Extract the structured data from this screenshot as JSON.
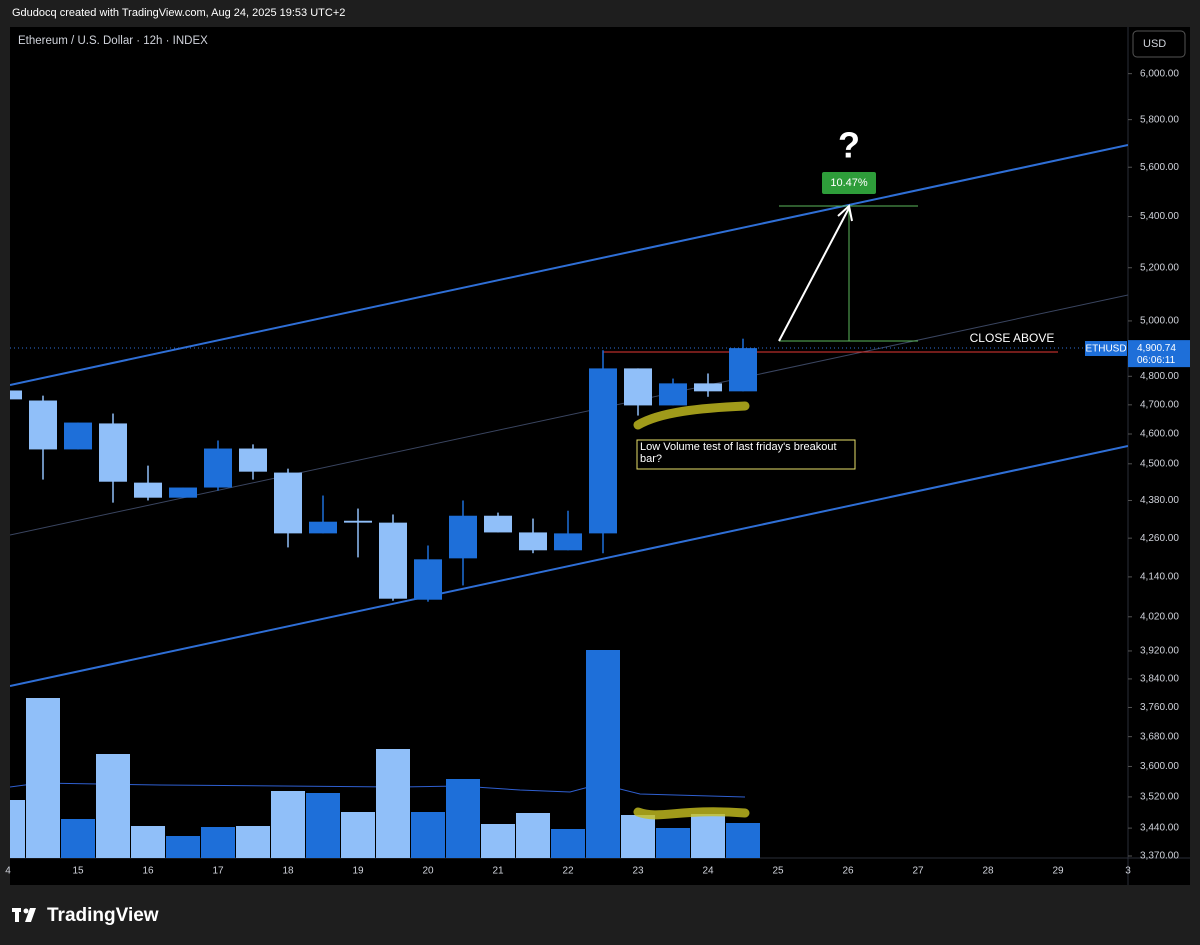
{
  "header": "Gdudocq created with TradingView.com, Aug 24, 2025 19:53 UTC+2",
  "footer": "TradingView",
  "chart_data": {
    "type": "candlestick",
    "title": "Ethereum / U.S. Dollar · 12h · INDEX",
    "currency": "USD",
    "log_scale": true,
    "up_color": "#1e6fd9",
    "down_color": "#90bff9",
    "open": [
      4750,
      4715,
      4548,
      4636,
      4438,
      4389,
      4422,
      4551,
      4471,
      4275,
      4315,
      4309,
      4071,
      4197,
      4331,
      4278,
      4222,
      4275,
      4828,
      4698,
      4775,
      4747
    ],
    "high": [
      4750,
      4732,
      4639,
      4670,
      4494,
      4422,
      4578,
      4565,
      4484,
      4396,
      4354,
      4335,
      4237,
      4380,
      4341,
      4322,
      4347,
      4893,
      4828,
      4792,
      4810,
      4935
    ],
    "low": [
      4719,
      4448,
      4548,
      4373,
      4380,
      4389,
      4412,
      4448,
      4231,
      4275,
      4200,
      4068,
      4065,
      4114,
      4278,
      4213,
      4222,
      4213,
      4663,
      4698,
      4728,
      4747
    ],
    "close": [
      4719,
      4548,
      4639,
      4441,
      4389,
      4422,
      4551,
      4474,
      4275,
      4312,
      4309,
      4074,
      4194,
      4331,
      4278,
      4222,
      4275,
      4828,
      4698,
      4775,
      4747,
      4900.74
    ],
    "volume": [
      58,
      160,
      39,
      104,
      32,
      22,
      31,
      32,
      67,
      65,
      46,
      109,
      46,
      79,
      34,
      45,
      29,
      208,
      43,
      30,
      44,
      35
    ],
    "ylim": [
      3365,
      6210
    ],
    "yticks": [
      {
        "value": 6000,
        "label": "6,000.00"
      },
      {
        "value": 5800,
        "label": "5,800.00"
      },
      {
        "value": 5600,
        "label": "5,600.00"
      },
      {
        "value": 5400,
        "label": "5,400.00"
      },
      {
        "value": 5200,
        "label": "5,200.00"
      },
      {
        "value": 5000,
        "label": "5,000.00"
      },
      {
        "value": 4800,
        "label": "4,800.00"
      },
      {
        "value": 4700,
        "label": "4,700.00"
      },
      {
        "value": 4600,
        "label": "4,600.00"
      },
      {
        "value": 4500,
        "label": "4,500.00"
      },
      {
        "value": 4380,
        "label": "4,380.00"
      },
      {
        "value": 4260,
        "label": "4,260.00"
      },
      {
        "value": 4140,
        "label": "4,140.00"
      },
      {
        "value": 4020,
        "label": "4,020.00"
      },
      {
        "value": 3920,
        "label": "3,920.00"
      },
      {
        "value": 3840,
        "label": "3,840.00"
      },
      {
        "value": 3760,
        "label": "3,760.00"
      },
      {
        "value": 3680,
        "label": "3,680.00"
      },
      {
        "value": 3600,
        "label": "3,600.00"
      },
      {
        "value": 3520,
        "label": "3,520.00"
      },
      {
        "value": 3440,
        "label": "3,440.00"
      },
      {
        "value": 3370,
        "label": "3,370.00"
      }
    ],
    "xticks": [
      "4",
      "15",
      "16",
      "17",
      "18",
      "19",
      "20",
      "21",
      "22",
      "23",
      "24",
      "25",
      "26",
      "27",
      "28",
      "29",
      "3"
    ],
    "last_price": {
      "value": 4900.74,
      "label": "4,900.74",
      "symbol": "ETHUSD",
      "countdown": "06:06:11"
    },
    "annotations": {
      "close_above": "CLOSE ABOVE",
      "percent": "10.47%",
      "question": "?",
      "note": "Low Volume test of last friday's breakout bar?"
    }
  }
}
